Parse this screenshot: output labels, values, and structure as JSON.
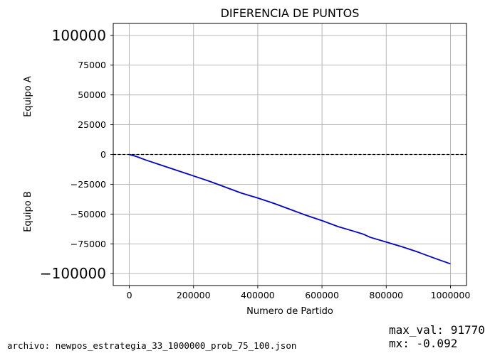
{
  "chart_data": {
    "type": "line",
    "title": "DIFERENCIA DE PUNTOS",
    "xlabel": "Numero de Partido",
    "ylabel_top": "Equipo A",
    "ylabel_bottom": "Equipo B",
    "xlim": [
      -50000,
      1050000
    ],
    "ylim": [
      -110000,
      110000
    ],
    "x_ticks": [
      0,
      200000,
      400000,
      600000,
      800000,
      1000000
    ],
    "x_tick_labels": [
      "0",
      "200000",
      "400000",
      "600000",
      "800000",
      "1000000"
    ],
    "y_ticks": [
      -100000,
      -75000,
      -50000,
      -25000,
      0,
      25000,
      50000,
      75000,
      100000
    ],
    "y_tick_labels": [
      "−100000",
      "−75000",
      "−50000",
      "−25000",
      "0",
      "25000",
      "50000",
      "75000",
      "100000"
    ],
    "large_y_tick_labels": [
      100000,
      -100000
    ],
    "grid": true,
    "series": [
      {
        "color": "#0000cc",
        "x": [
          0,
          20000,
          50000,
          100000,
          150000,
          200000,
          250000,
          300000,
          350000,
          400000,
          450000,
          500000,
          550000,
          600000,
          650000,
          700000,
          730000,
          750000,
          800000,
          850000,
          900000,
          950000,
          1000000
        ],
        "y": [
          0,
          -1500,
          -4500,
          -9000,
          -13500,
          -18000,
          -22500,
          -27500,
          -32500,
          -36500,
          -41000,
          -46000,
          -51000,
          -55500,
          -60500,
          -64500,
          -67000,
          -69500,
          -73500,
          -77500,
          -82000,
          -87000,
          -91770
        ]
      }
    ],
    "reference_line": {
      "y": 0,
      "color": "#000000",
      "style": "dashed"
    }
  },
  "footer": {
    "file_label": "archivo: newpos_estrategia_33_1000000_prob_75_100.json",
    "max_val_label": "max_val: 91770",
    "mx_label": "mx: -0.092"
  }
}
